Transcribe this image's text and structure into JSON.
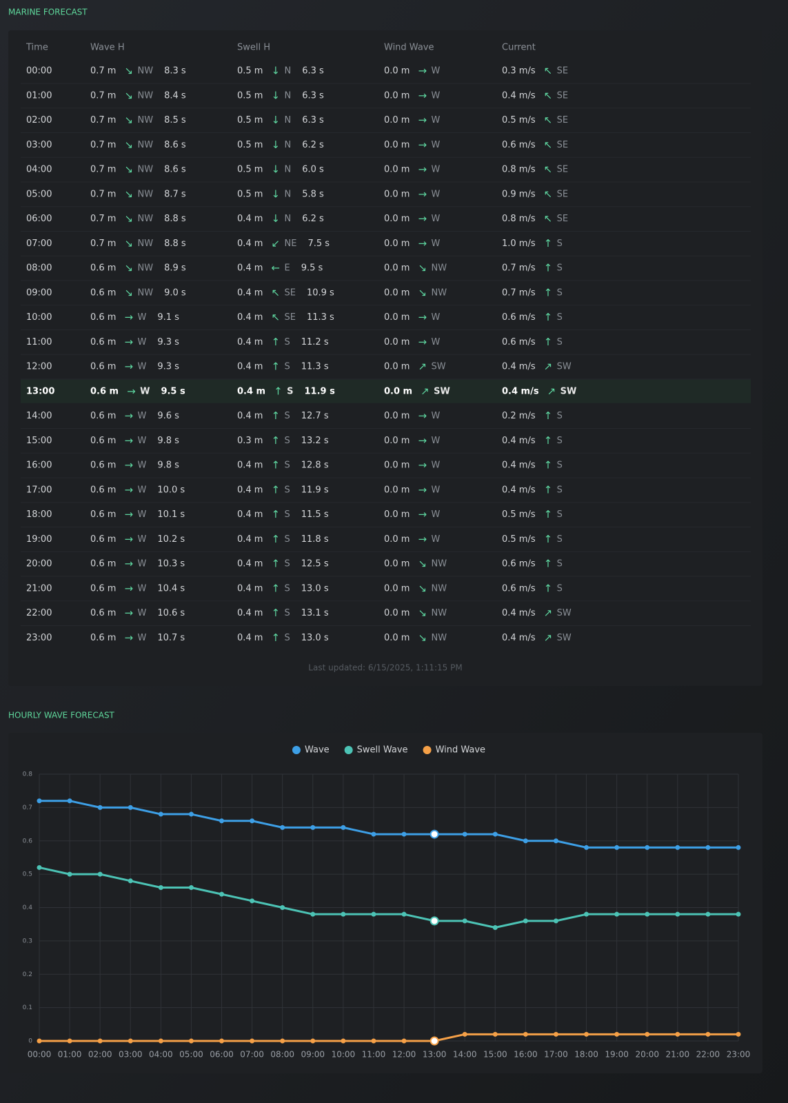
{
  "marine_forecast": {
    "title": "MARINE FORECAST",
    "columns": [
      "Time",
      "Wave H",
      "Swell H",
      "Wind Wave",
      "Current"
    ],
    "rows": [
      [
        "00:00",
        "0.7 m",
        "↘",
        "NW",
        "8.3 s",
        "0.5 m",
        "↓",
        "N",
        "6.3 s",
        "0.0 m",
        "→",
        "W",
        "0.3 m/s",
        "↖",
        "SE"
      ],
      [
        "01:00",
        "0.7 m",
        "↘",
        "NW",
        "8.4 s",
        "0.5 m",
        "↓",
        "N",
        "6.3 s",
        "0.0 m",
        "→",
        "W",
        "0.4 m/s",
        "↖",
        "SE"
      ],
      [
        "02:00",
        "0.7 m",
        "↘",
        "NW",
        "8.5 s",
        "0.5 m",
        "↓",
        "N",
        "6.3 s",
        "0.0 m",
        "→",
        "W",
        "0.5 m/s",
        "↖",
        "SE"
      ],
      [
        "03:00",
        "0.7 m",
        "↘",
        "NW",
        "8.6 s",
        "0.5 m",
        "↓",
        "N",
        "6.2 s",
        "0.0 m",
        "→",
        "W",
        "0.6 m/s",
        "↖",
        "SE"
      ],
      [
        "04:00",
        "0.7 m",
        "↘",
        "NW",
        "8.6 s",
        "0.5 m",
        "↓",
        "N",
        "6.0 s",
        "0.0 m",
        "→",
        "W",
        "0.8 m/s",
        "↖",
        "SE"
      ],
      [
        "05:00",
        "0.7 m",
        "↘",
        "NW",
        "8.7 s",
        "0.5 m",
        "↓",
        "N",
        "5.8 s",
        "0.0 m",
        "→",
        "W",
        "0.9 m/s",
        "↖",
        "SE"
      ],
      [
        "06:00",
        "0.7 m",
        "↘",
        "NW",
        "8.8 s",
        "0.4 m",
        "↓",
        "N",
        "6.2 s",
        "0.0 m",
        "→",
        "W",
        "0.8 m/s",
        "↖",
        "SE"
      ],
      [
        "07:00",
        "0.7 m",
        "↘",
        "NW",
        "8.8 s",
        "0.4 m",
        "↙",
        "NE",
        "7.5 s",
        "0.0 m",
        "→",
        "W",
        "1.0 m/s",
        "↑",
        "S"
      ],
      [
        "08:00",
        "0.6 m",
        "↘",
        "NW",
        "8.9 s",
        "0.4 m",
        "←",
        "E",
        "9.5 s",
        "0.0 m",
        "↘",
        "NW",
        "0.7 m/s",
        "↑",
        "S"
      ],
      [
        "09:00",
        "0.6 m",
        "↘",
        "NW",
        "9.0 s",
        "0.4 m",
        "↖",
        "SE",
        "10.9 s",
        "0.0 m",
        "↘",
        "NW",
        "0.7 m/s",
        "↑",
        "S"
      ],
      [
        "10:00",
        "0.6 m",
        "→",
        "W",
        "9.1 s",
        "0.4 m",
        "↖",
        "SE",
        "11.3 s",
        "0.0 m",
        "→",
        "W",
        "0.6 m/s",
        "↑",
        "S"
      ],
      [
        "11:00",
        "0.6 m",
        "→",
        "W",
        "9.3 s",
        "0.4 m",
        "↑",
        "S",
        "11.2 s",
        "0.0 m",
        "→",
        "W",
        "0.6 m/s",
        "↑",
        "S"
      ],
      [
        "12:00",
        "0.6 m",
        "→",
        "W",
        "9.3 s",
        "0.4 m",
        "↑",
        "S",
        "11.3 s",
        "0.0 m",
        "↗",
        "SW",
        "0.4 m/s",
        "↗",
        "SW"
      ],
      [
        "13:00",
        "0.6 m",
        "→",
        "W",
        "9.5 s",
        "0.4 m",
        "↑",
        "S",
        "11.9 s",
        "0.0 m",
        "↗",
        "SW",
        "0.4 m/s",
        "↗",
        "SW"
      ],
      [
        "14:00",
        "0.6 m",
        "→",
        "W",
        "9.6 s",
        "0.4 m",
        "↑",
        "S",
        "12.7 s",
        "0.0 m",
        "→",
        "W",
        "0.2 m/s",
        "↑",
        "S"
      ],
      [
        "15:00",
        "0.6 m",
        "→",
        "W",
        "9.8 s",
        "0.3 m",
        "↑",
        "S",
        "13.2 s",
        "0.0 m",
        "→",
        "W",
        "0.4 m/s",
        "↑",
        "S"
      ],
      [
        "16:00",
        "0.6 m",
        "→",
        "W",
        "9.8 s",
        "0.4 m",
        "↑",
        "S",
        "12.8 s",
        "0.0 m",
        "→",
        "W",
        "0.4 m/s",
        "↑",
        "S"
      ],
      [
        "17:00",
        "0.6 m",
        "→",
        "W",
        "10.0 s",
        "0.4 m",
        "↑",
        "S",
        "11.9 s",
        "0.0 m",
        "→",
        "W",
        "0.4 m/s",
        "↑",
        "S"
      ],
      [
        "18:00",
        "0.6 m",
        "→",
        "W",
        "10.1 s",
        "0.4 m",
        "↑",
        "S",
        "11.5 s",
        "0.0 m",
        "→",
        "W",
        "0.5 m/s",
        "↑",
        "S"
      ],
      [
        "19:00",
        "0.6 m",
        "→",
        "W",
        "10.2 s",
        "0.4 m",
        "↑",
        "S",
        "11.8 s",
        "0.0 m",
        "→",
        "W",
        "0.5 m/s",
        "↑",
        "S"
      ],
      [
        "20:00",
        "0.6 m",
        "→",
        "W",
        "10.3 s",
        "0.4 m",
        "↑",
        "S",
        "12.5 s",
        "0.0 m",
        "↘",
        "NW",
        "0.6 m/s",
        "↑",
        "S"
      ],
      [
        "21:00",
        "0.6 m",
        "→",
        "W",
        "10.4 s",
        "0.4 m",
        "↑",
        "S",
        "13.0 s",
        "0.0 m",
        "↘",
        "NW",
        "0.6 m/s",
        "↑",
        "S"
      ],
      [
        "22:00",
        "0.6 m",
        "→",
        "W",
        "10.6 s",
        "0.4 m",
        "↑",
        "S",
        "13.1 s",
        "0.0 m",
        "↘",
        "NW",
        "0.4 m/s",
        "↗",
        "SW"
      ],
      [
        "23:00",
        "0.6 m",
        "→",
        "W",
        "10.7 s",
        "0.4 m",
        "↑",
        "S",
        "13.0 s",
        "0.0 m",
        "↘",
        "NW",
        "0.4 m/s",
        "↗",
        "SW"
      ]
    ],
    "active_row": 13,
    "footer": "Last updated: 6/15/2025, 1:11:15 PM"
  },
  "chart_data": {
    "type": "line",
    "title": "HOURLY WAVE FORECAST",
    "categories": [
      "00:00",
      "01:00",
      "02:00",
      "03:00",
      "04:00",
      "05:00",
      "06:00",
      "07:00",
      "08:00",
      "09:00",
      "10:00",
      "11:00",
      "12:00",
      "13:00",
      "14:00",
      "15:00",
      "16:00",
      "17:00",
      "18:00",
      "19:00",
      "20:00",
      "21:00",
      "22:00",
      "23:00"
    ],
    "series": [
      {
        "name": "Wave",
        "color": "#3d9fe6",
        "values": [
          0.72,
          0.72,
          0.7,
          0.7,
          0.68,
          0.68,
          0.66,
          0.66,
          0.64,
          0.64,
          0.64,
          0.62,
          0.62,
          0.62,
          0.62,
          0.62,
          0.6,
          0.6,
          0.58,
          0.58,
          0.58,
          0.58,
          0.58,
          0.58
        ]
      },
      {
        "name": "Swell Wave",
        "color": "#4cc3b5",
        "values": [
          0.52,
          0.5,
          0.5,
          0.48,
          0.46,
          0.46,
          0.44,
          0.42,
          0.4,
          0.38,
          0.38,
          0.38,
          0.38,
          0.36,
          0.36,
          0.34,
          0.36,
          0.36,
          0.38,
          0.38,
          0.38,
          0.38,
          0.38,
          0.38
        ]
      },
      {
        "name": "Wind Wave",
        "color": "#f5a047",
        "values": [
          0,
          0,
          0,
          0,
          0,
          0,
          0,
          0,
          0,
          0,
          0,
          0,
          0,
          0,
          0.02,
          0.02,
          0.02,
          0.02,
          0.02,
          0.02,
          0.02,
          0.02,
          0.02,
          0.02
        ]
      }
    ],
    "ylim": [
      0,
      0.8
    ],
    "yticks": [
      0,
      0.1,
      0.2,
      0.3,
      0.4,
      0.5,
      0.6,
      0.7,
      0.8
    ],
    "grid": true,
    "legend": "top",
    "active_index": 13
  }
}
